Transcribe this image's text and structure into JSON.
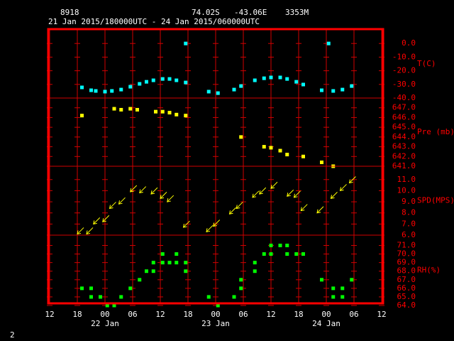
{
  "header": {
    "station": "8918",
    "lat": "74.02S",
    "lon": "-43.06E",
    "elev": "3353M",
    "period": "21 Jan 2015/180000UTC - 24 Jan 2015/060000UTC"
  },
  "footer": "2",
  "chart_data": [
    {
      "type": "scatter",
      "marker": "square",
      "y_label": "T(C)",
      "color": "#00ffff",
      "ylim": [
        -40,
        10
      ],
      "yticks": [
        {
          "value": 0,
          "label": "0.0"
        },
        {
          "value": -10,
          "label": "-10.0"
        },
        {
          "value": -20,
          "label": "-20.0"
        },
        {
          "value": -30,
          "label": "-30.0"
        },
        {
          "value": -40,
          "label": "-40.0"
        }
      ],
      "x": [
        "2015-01-21T19:00",
        "2015-01-21T21:00",
        "2015-01-21T22:00",
        "2015-01-22T00:00",
        "2015-01-22T01:30",
        "2015-01-22T03:30",
        "2015-01-22T05:30",
        "2015-01-22T07:30",
        "2015-01-22T09:00",
        "2015-01-22T10:30",
        "2015-01-22T12:30",
        "2015-01-22T14:00",
        "2015-01-22T15:30",
        "2015-01-22T17:30",
        "2015-01-22T17:30",
        "2015-01-22T22:30",
        "2015-01-23T00:30",
        "2015-01-23T04:00",
        "2015-01-23T05:30",
        "2015-01-23T08:30",
        "2015-01-23T10:30",
        "2015-01-23T12:00",
        "2015-01-23T14:00",
        "2015-01-23T15:30",
        "2015-01-23T17:30",
        "2015-01-23T19:00",
        "2015-01-23T23:00",
        "2015-01-24T00:30",
        "2015-01-24T01:30",
        "2015-01-24T03:30",
        "2015-01-24T05:30"
      ],
      "values": [
        -32.2,
        -34.3,
        -34.8,
        -35.3,
        -34.8,
        -33.8,
        -31.7,
        -29.6,
        -28.1,
        -27.0,
        -26.0,
        -26.0,
        -27.0,
        -28.6,
        0.0,
        -35.3,
        -36.4,
        -33.8,
        -31.2,
        -27.0,
        -25.5,
        -24.9,
        -24.9,
        -26.0,
        -28.1,
        -30.1,
        -34.3,
        0.0,
        -34.8,
        -33.8,
        -31.2
      ]
    },
    {
      "type": "scatter",
      "marker": "square",
      "y_label": "Pre (mb)",
      "color": "#ffff00",
      "ylim": [
        641,
        648
      ],
      "yticks": [
        {
          "value": 647,
          "label": "647.0"
        },
        {
          "value": 646,
          "label": "646.0"
        },
        {
          "value": 645,
          "label": "645.0"
        },
        {
          "value": 644,
          "label": "644.0"
        },
        {
          "value": 643,
          "label": "643.0"
        },
        {
          "value": 642,
          "label": "642.0"
        },
        {
          "value": 641,
          "label": "641.0"
        }
      ],
      "x": [
        "2015-01-21T19:00",
        "2015-01-22T02:00",
        "2015-01-22T03:30",
        "2015-01-22T05:30",
        "2015-01-22T07:00",
        "2015-01-22T11:00",
        "2015-01-22T12:30",
        "2015-01-22T14:00",
        "2015-01-22T15:30",
        "2015-01-22T17:30",
        "2015-01-23T05:30",
        "2015-01-23T10:30",
        "2015-01-23T12:00",
        "2015-01-23T14:00",
        "2015-01-23T15:30",
        "2015-01-23T19:00",
        "2015-01-23T23:00",
        "2015-01-24T01:30"
      ],
      "values": [
        646.2,
        646.9,
        646.8,
        646.9,
        646.8,
        646.6,
        646.6,
        646.5,
        646.3,
        646.2,
        644.0,
        643.0,
        642.9,
        642.6,
        642.2,
        642.0,
        641.4,
        641.0
      ]
    },
    {
      "type": "scatter",
      "marker": "arrow",
      "y_label": "SPD(MPS)",
      "color": "#ffff00",
      "ylim": [
        6,
        12.2
      ],
      "yticks": [
        {
          "value": 11,
          "label": "11.0"
        },
        {
          "value": 10,
          "label": "10.0"
        },
        {
          "value": 9,
          "label": "9.0"
        },
        {
          "value": 8,
          "label": "8.0"
        },
        {
          "value": 7,
          "label": "7.0"
        },
        {
          "value": 6,
          "label": "6.0"
        }
      ],
      "x": [
        "2015-01-21T18:00",
        "2015-01-21T20:00",
        "2015-01-21T21:30",
        "2015-01-21T23:30",
        "2015-01-22T01:00",
        "2015-01-22T03:00",
        "2015-01-22T05:30",
        "2015-01-22T07:30",
        "2015-01-22T10:00",
        "2015-01-22T12:00",
        "2015-01-22T13:30",
        "2015-01-22T17:00",
        "2015-01-22T22:00",
        "2015-01-22T23:30",
        "2015-01-23T03:00",
        "2015-01-23T04:30",
        "2015-01-23T08:00",
        "2015-01-23T09:30",
        "2015-01-23T12:00",
        "2015-01-23T15:30",
        "2015-01-23T17:00",
        "2015-01-23T18:30",
        "2015-01-23T22:00",
        "2015-01-24T01:00",
        "2015-01-24T03:00",
        "2015-01-24T05:00"
      ],
      "values": [
        6.1,
        6.1,
        7.0,
        7.2,
        8.4,
        8.8,
        9.9,
        9.8,
        9.7,
        9.3,
        9.0,
        6.7,
        6.3,
        6.8,
        7.9,
        8.4,
        9.4,
        9.7,
        10.2,
        9.5,
        9.4,
        8.2,
        8.0,
        9.3,
        10.0,
        10.7
      ]
    },
    {
      "type": "scatter",
      "marker": "square",
      "y_label": "RH(%)",
      "color": "#00ff00",
      "ylim": [
        64,
        72.2
      ],
      "yticks": [
        {
          "value": 71,
          "label": "71.0"
        },
        {
          "value": 70,
          "label": "70.0"
        },
        {
          "value": 69,
          "label": "69.0"
        },
        {
          "value": 68,
          "label": "68.0"
        },
        {
          "value": 67,
          "label": "67.0"
        },
        {
          "value": 66,
          "label": "66.0"
        },
        {
          "value": 65,
          "label": "65.0"
        },
        {
          "value": 64,
          "label": "64.0"
        }
      ],
      "x": [
        "2015-01-21T19:00",
        "2015-01-21T21:00",
        "2015-01-21T21:00",
        "2015-01-21T23:00",
        "2015-01-22T00:30",
        "2015-01-22T02:00",
        "2015-01-22T03:30",
        "2015-01-22T05:30",
        "2015-01-22T07:30",
        "2015-01-22T09:00",
        "2015-01-22T10:30",
        "2015-01-22T10:30",
        "2015-01-22T12:30",
        "2015-01-22T12:30",
        "2015-01-22T14:00",
        "2015-01-22T15:30",
        "2015-01-22T15:30",
        "2015-01-22T17:30",
        "2015-01-22T17:30",
        "2015-01-22T22:30",
        "2015-01-23T00:30",
        "2015-01-23T04:00",
        "2015-01-23T05:30",
        "2015-01-23T05:30",
        "2015-01-23T08:30",
        "2015-01-23T08:30",
        "2015-01-23T10:30",
        "2015-01-23T12:00",
        "2015-01-23T12:00",
        "2015-01-23T14:00",
        "2015-01-23T15:30",
        "2015-01-23T15:30",
        "2015-01-23T17:30",
        "2015-01-23T19:00",
        "2015-01-23T23:00",
        "2015-01-24T01:30",
        "2015-01-24T01:30",
        "2015-01-24T03:30",
        "2015-01-24T03:30",
        "2015-01-24T05:30"
      ],
      "values": [
        66,
        66,
        65,
        65,
        64,
        64,
        65,
        66,
        67,
        68,
        68,
        69,
        70,
        69,
        69,
        70,
        69,
        69,
        68,
        65,
        64,
        65,
        66,
        67,
        68,
        69,
        70,
        71,
        70,
        71,
        71,
        70,
        70,
        70,
        67,
        66,
        65,
        66,
        65,
        67
      ],
      "xlim": [
        "2015-01-21T12:00",
        "2015-01-24T12:00"
      ],
      "xticks": [
        {
          "value": "2015-01-21T12:00",
          "label": "12"
        },
        {
          "value": "2015-01-21T18:00",
          "label": "18"
        },
        {
          "value": "2015-01-22T00:00",
          "label": "00"
        },
        {
          "value": "2015-01-22T06:00",
          "label": "06"
        },
        {
          "value": "2015-01-22T12:00",
          "label": "12"
        },
        {
          "value": "2015-01-22T18:00",
          "label": "18"
        },
        {
          "value": "2015-01-23T00:00",
          "label": "00"
        },
        {
          "value": "2015-01-23T06:00",
          "label": "06"
        },
        {
          "value": "2015-01-23T12:00",
          "label": "12"
        },
        {
          "value": "2015-01-23T18:00",
          "label": "18"
        },
        {
          "value": "2015-01-24T00:00",
          "label": "00"
        },
        {
          "value": "2015-01-24T06:00",
          "label": "06"
        },
        {
          "value": "2015-01-24T12:00",
          "label": "12"
        }
      ],
      "date_labels": [
        {
          "value": "2015-01-22T00:00",
          "label": "22 Jan"
        },
        {
          "value": "2015-01-23T00:00",
          "label": "23 Jan"
        },
        {
          "value": "2015-01-24T00:00",
          "label": "24 Jan"
        }
      ]
    }
  ]
}
